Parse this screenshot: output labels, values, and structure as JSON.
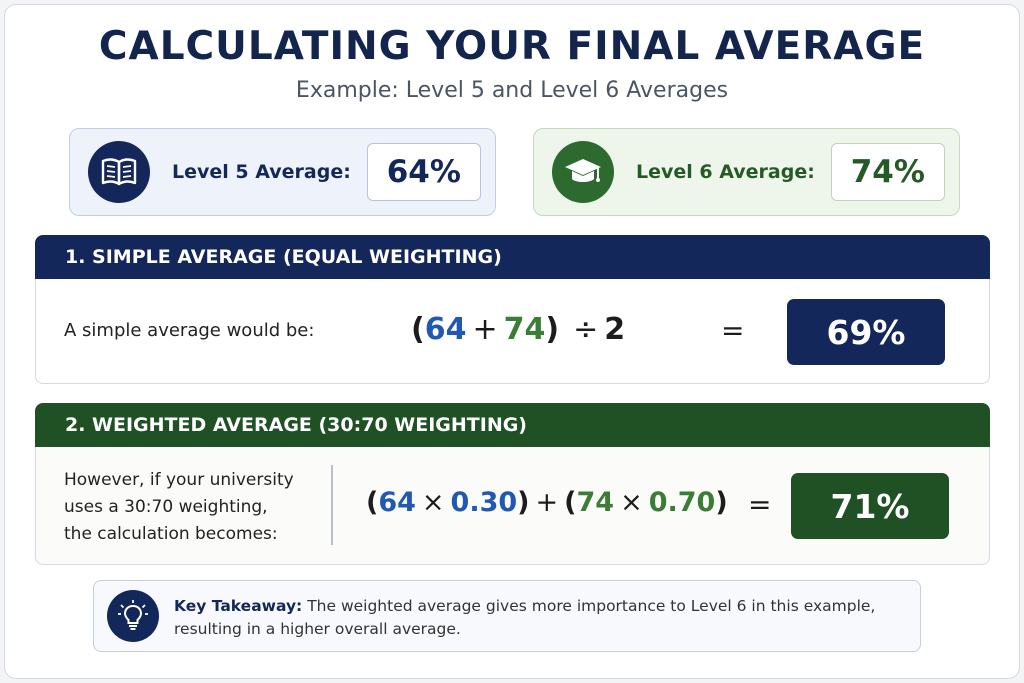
{
  "title": "CALCULATING YOUR FINAL AVERAGE",
  "subtitle": "Example: Level 5 and Level 6 Averages",
  "level5": {
    "label": "Level 5 Average:",
    "value": "64%",
    "icon": "book-icon",
    "color": "#13275a"
  },
  "level6": {
    "label": "Level 6 Average:",
    "value": "74%",
    "icon": "graduation-cap-icon",
    "color": "#2c6a2f"
  },
  "simple": {
    "header": "1. SIMPLE AVERAGE (EQUAL WEIGHTING)",
    "text": "A simple average would be:",
    "formula": {
      "open": "(",
      "a": "64",
      "plus": "+",
      "b": "74",
      "close": ")",
      "div": "÷",
      "n": "2"
    },
    "equals": "=",
    "result": "69%"
  },
  "weighted": {
    "header": "2. WEIGHTED AVERAGE (30:70 WEIGHTING)",
    "text_lines": [
      "However, if your university",
      "uses a 30:70 weighting,",
      "the calculation becomes:"
    ],
    "formula": {
      "open1": "(",
      "a": "64",
      "times1": "×",
      "wa": "0.30",
      "close1": ")",
      "plus": "+",
      "open2": "(",
      "b": "74",
      "times2": "×",
      "wb": "0.70",
      "close2": ")"
    },
    "equals": "=",
    "result": "71%"
  },
  "takeaway": {
    "icon": "lightbulb-icon",
    "label": "Key Takeaway:",
    "line1": " The weighted average gives more importance to Level 6 in this example,",
    "line2": "resulting in a higher overall average."
  }
}
